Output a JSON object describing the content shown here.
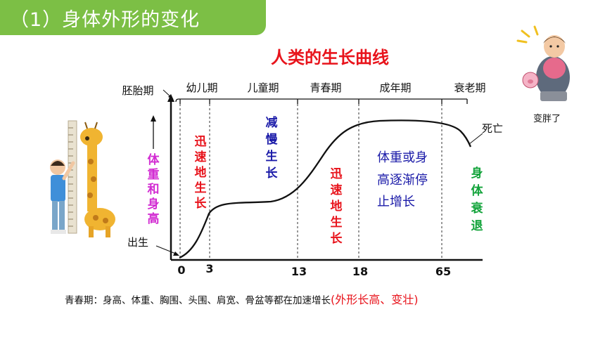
{
  "banner": {
    "text": "（1）身体外形的变化",
    "color": "#7cbf45"
  },
  "diagram": {
    "title": "人类的生长曲线",
    "y_axis_label": [
      "体",
      "重",
      "和",
      "身",
      "高"
    ],
    "stages": [
      "胚胎期",
      "幼儿期",
      "儿童期",
      "青春期",
      "成年期",
      "衰老期"
    ],
    "ticks": [
      "0",
      "3",
      "13",
      "18",
      "65"
    ],
    "birth_label": "出生",
    "death_label": "死亡",
    "phase_labels": {
      "infant": [
        "迅",
        "速",
        "地",
        "生",
        "长"
      ],
      "child": [
        "减",
        "慢",
        "生",
        "长"
      ],
      "puberty": [
        "迅",
        "速",
        "地",
        "生",
        "长"
      ],
      "adult": [
        "体重或身",
        "高逐渐停",
        "止增长"
      ],
      "old": [
        "身",
        "体",
        "衰",
        "退"
      ]
    },
    "colors": {
      "red": "#e8141c",
      "blue": "#1a1aa8",
      "green": "#12a33a",
      "magenta": "#d22bd2"
    }
  },
  "side_image": {
    "caption": "变胖了"
  },
  "note": {
    "main": "青春期：身高、体重、胸围、头围、肩宽、骨盆等都在加速增长",
    "highlight": "(外形长高、变壮)"
  }
}
